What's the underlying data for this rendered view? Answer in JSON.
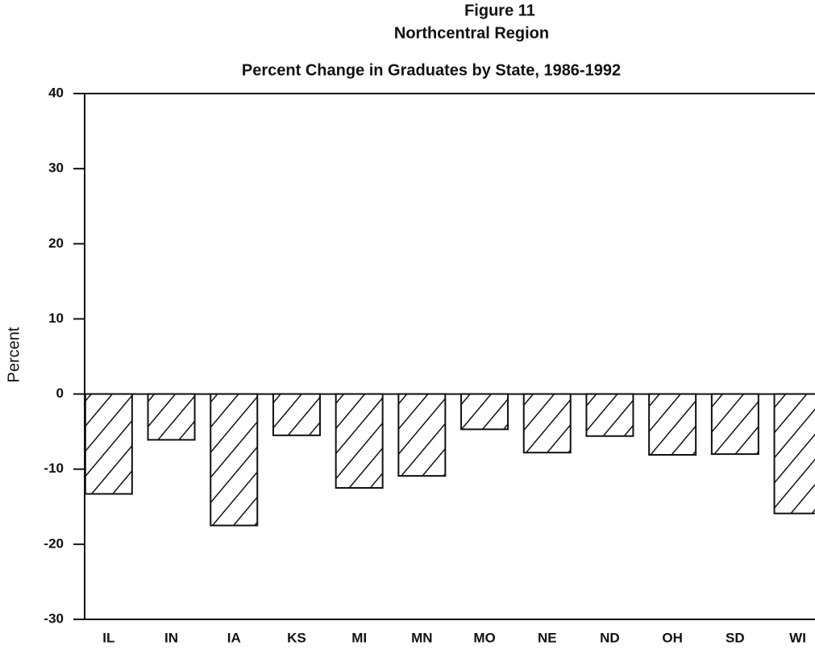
{
  "chart_data": {
    "type": "bar",
    "figure": "Figure 11",
    "title": "Northcentral Region",
    "subtitle": "Percent Change in Graduates by State, 1986-1992",
    "y_label": "Percent",
    "categories": [
      "IL",
      "IN",
      "IA",
      "KS",
      "MI",
      "MN",
      "MO",
      "NE",
      "ND",
      "OH",
      "SD",
      "WI"
    ],
    "values": [
      -13.3,
      -6.1,
      -17.5,
      -5.5,
      -12.5,
      -10.9,
      -4.7,
      -7.8,
      -5.6,
      -8.1,
      -8.0,
      -15.9
    ],
    "color": "#111111",
    "fill": "hatch",
    "ylim": [
      -30,
      40
    ],
    "yticks": [
      40,
      30,
      20,
      10,
      0,
      -10,
      -20,
      -30
    ],
    "grid": false
  }
}
